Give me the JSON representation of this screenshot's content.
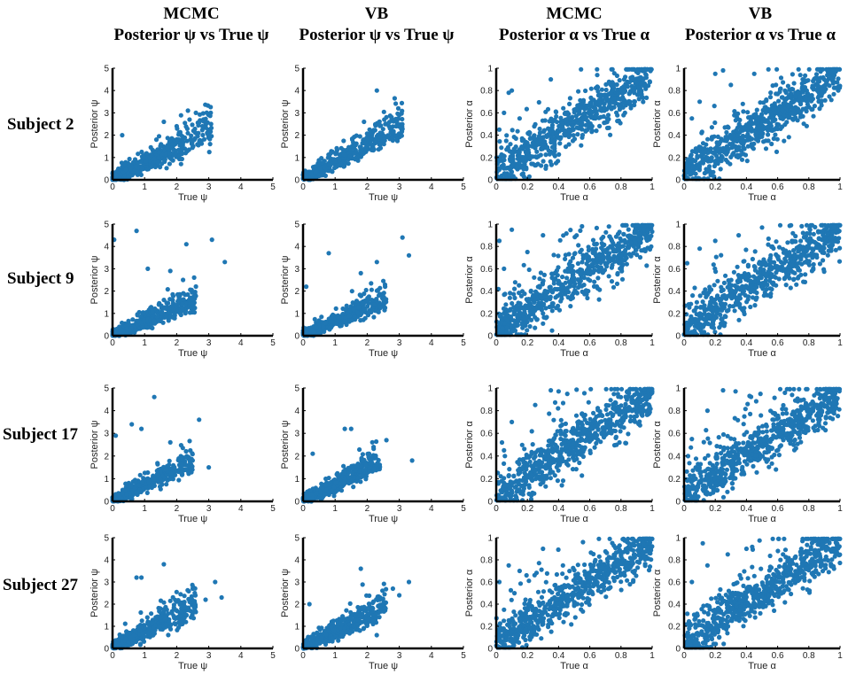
{
  "headers": [
    {
      "line1": "MCMC",
      "line2": "Posterior ψ vs True ψ"
    },
    {
      "line1": "VB",
      "line2": "Posterior ψ vs True ψ"
    },
    {
      "line1": "MCMC",
      "line2": "Posterior α  vs True α"
    },
    {
      "line1": "VB",
      "line2": "Posterior α  vs True α"
    }
  ],
  "rows": [
    "Subject 2",
    "Subject 9",
    "Subject 17",
    "Subject 27"
  ],
  "colors": {
    "marker": "#1f77b4",
    "axis": "#000000"
  },
  "chart_data": [
    {
      "type": "scatter",
      "subject": "Subject 2",
      "method": "MCMC",
      "xlabel": "True ψ",
      "ylabel": "Posterior ψ",
      "xlim": [
        0,
        5
      ],
      "ylim": [
        0,
        5
      ],
      "xticks": [
        0,
        1,
        2,
        3,
        4,
        5
      ],
      "yticks": [
        0,
        1,
        2,
        3,
        4,
        5
      ],
      "grid": false,
      "trend": {
        "kind": "psi",
        "slope": 0.72,
        "spread": 0.28,
        "xmax": 3.1,
        "count": 420,
        "seed": 11
      },
      "points": [
        [
          2.35,
          3.1
        ],
        [
          2.6,
          3.0
        ],
        [
          2.4,
          2.7
        ],
        [
          2.8,
          2.4
        ],
        [
          3.0,
          2.0
        ],
        [
          0.3,
          2.0
        ],
        [
          1.6,
          2.6
        ],
        [
          2.0,
          2.4
        ]
      ]
    },
    {
      "type": "scatter",
      "subject": "Subject 2",
      "method": "VB",
      "xlabel": "True ψ",
      "ylabel": "Posterior ψ",
      "xlim": [
        0,
        5
      ],
      "ylim": [
        0,
        5
      ],
      "xticks": [
        0,
        1,
        2,
        3,
        4,
        5
      ],
      "yticks": [
        0,
        1,
        2,
        3,
        4,
        5
      ],
      "grid": false,
      "trend": {
        "kind": "psi",
        "slope": 0.78,
        "spread": 0.25,
        "xmax": 3.1,
        "count": 420,
        "seed": 12
      },
      "points": [
        [
          2.3,
          4.0
        ],
        [
          3.0,
          2.9
        ],
        [
          2.6,
          2.8
        ],
        [
          2.9,
          2.4
        ],
        [
          2.2,
          2.2
        ],
        [
          1.9,
          2.6
        ]
      ]
    },
    {
      "type": "scatter",
      "subject": "Subject 2",
      "method": "MCMC",
      "xlabel": "True α",
      "ylabel": "Posterior α",
      "xlim": [
        0,
        1
      ],
      "ylim": [
        0,
        1
      ],
      "xticks": [
        0,
        0.2,
        0.4,
        0.6,
        0.8,
        1
      ],
      "yticks": [
        0,
        0.2,
        0.4,
        0.6,
        0.8,
        1
      ],
      "grid": false,
      "trend": {
        "kind": "alpha",
        "slope": 0.9,
        "spread": 0.1,
        "count": 700,
        "seed": 13
      },
      "points": [
        [
          0.08,
          0.78
        ],
        [
          0.1,
          0.8
        ],
        [
          0.05,
          0.6
        ],
        [
          0.35,
          0.9
        ],
        [
          0.15,
          0.55
        ],
        [
          0.02,
          0.45
        ]
      ]
    },
    {
      "type": "scatter",
      "subject": "Subject 2",
      "method": "VB",
      "xlabel": "True α",
      "ylabel": "Posterior α",
      "xlim": [
        0,
        1
      ],
      "ylim": [
        0,
        1
      ],
      "xticks": [
        0,
        0.2,
        0.4,
        0.6,
        0.8,
        1
      ],
      "yticks": [
        0,
        0.2,
        0.4,
        0.6,
        0.8,
        1
      ],
      "grid": false,
      "trend": {
        "kind": "alpha",
        "slope": 0.9,
        "spread": 0.1,
        "count": 700,
        "seed": 14
      },
      "points": [
        [
          0.2,
          0.95
        ],
        [
          0.25,
          0.98
        ],
        [
          0.3,
          0.85
        ],
        [
          0.1,
          0.7
        ],
        [
          0.05,
          0.55
        ],
        [
          0.45,
          0.95
        ]
      ]
    },
    {
      "type": "scatter",
      "subject": "Subject 9",
      "method": "MCMC",
      "xlabel": "True ψ",
      "ylabel": "Posterior ψ",
      "xlim": [
        0,
        5
      ],
      "ylim": [
        0,
        5
      ],
      "xticks": [
        0,
        1,
        2,
        3,
        4,
        5
      ],
      "yticks": [
        0,
        1,
        2,
        3,
        4,
        5
      ],
      "grid": false,
      "trend": {
        "kind": "psi",
        "slope": 0.6,
        "spread": 0.22,
        "xmax": 2.6,
        "count": 460,
        "seed": 21
      },
      "points": [
        [
          0.75,
          4.7
        ],
        [
          3.1,
          4.3
        ],
        [
          2.3,
          4.1
        ],
        [
          3.5,
          3.3
        ],
        [
          0.05,
          4.3
        ],
        [
          1.8,
          2.9
        ],
        [
          2.2,
          2.5
        ],
        [
          1.1,
          3.0
        ]
      ]
    },
    {
      "type": "scatter",
      "subject": "Subject 9",
      "method": "VB",
      "xlabel": "True ψ",
      "ylabel": "Posterior ψ",
      "xlim": [
        0,
        5
      ],
      "ylim": [
        0,
        5
      ],
      "xticks": [
        0,
        1,
        2,
        3,
        4,
        5
      ],
      "yticks": [
        0,
        1,
        2,
        3,
        4,
        5
      ],
      "grid": false,
      "trend": {
        "kind": "psi",
        "slope": 0.62,
        "spread": 0.22,
        "xmax": 2.6,
        "count": 460,
        "seed": 22
      },
      "points": [
        [
          3.1,
          4.4
        ],
        [
          3.3,
          3.6
        ],
        [
          0.8,
          3.7
        ],
        [
          2.3,
          3.3
        ],
        [
          1.8,
          2.8
        ],
        [
          0.1,
          2.2
        ]
      ]
    },
    {
      "type": "scatter",
      "subject": "Subject 9",
      "method": "MCMC",
      "xlabel": "True α",
      "ylabel": "Posterior α",
      "xlim": [
        0,
        1
      ],
      "ylim": [
        0,
        1
      ],
      "xticks": [
        0,
        0.2,
        0.4,
        0.6,
        0.8,
        1
      ],
      "yticks": [
        0,
        0.2,
        0.4,
        0.6,
        0.8,
        1
      ],
      "grid": false,
      "trend": {
        "kind": "alpha",
        "slope": 0.9,
        "spread": 0.1,
        "count": 700,
        "seed": 23
      },
      "points": [
        [
          0.1,
          0.95
        ],
        [
          0.02,
          0.85
        ],
        [
          0.2,
          0.75
        ],
        [
          0.3,
          0.9
        ],
        [
          0.55,
          0.98
        ],
        [
          0.05,
          0.6
        ]
      ]
    },
    {
      "type": "scatter",
      "subject": "Subject 9",
      "method": "VB",
      "xlabel": "True α",
      "ylabel": "Posterior α",
      "xlim": [
        0,
        1
      ],
      "ylim": [
        0,
        1
      ],
      "xticks": [
        0,
        0.2,
        0.4,
        0.6,
        0.8,
        1
      ],
      "yticks": [
        0,
        0.2,
        0.4,
        0.6,
        0.8,
        1
      ],
      "grid": false,
      "trend": {
        "kind": "alpha",
        "slope": 0.9,
        "spread": 0.1,
        "count": 700,
        "seed": 24
      },
      "points": [
        [
          0.2,
          0.85
        ],
        [
          0.1,
          0.78
        ],
        [
          0.02,
          0.65
        ],
        [
          0.35,
          0.9
        ],
        [
          0.5,
          0.97
        ]
      ]
    },
    {
      "type": "scatter",
      "subject": "Subject 17",
      "method": "MCMC",
      "xlabel": "True ψ",
      "ylabel": "Posterior ψ",
      "xlim": [
        0,
        5
      ],
      "ylim": [
        0,
        5
      ],
      "xticks": [
        0,
        1,
        2,
        3,
        4,
        5
      ],
      "yticks": [
        0,
        1,
        2,
        3,
        4,
        5
      ],
      "grid": false,
      "trend": {
        "kind": "psi",
        "slope": 0.7,
        "spread": 0.22,
        "xmax": 2.5,
        "count": 460,
        "seed": 31
      },
      "points": [
        [
          1.3,
          4.6
        ],
        [
          2.7,
          3.6
        ],
        [
          0.1,
          2.9
        ],
        [
          0.9,
          3.2
        ],
        [
          0.6,
          3.4
        ],
        [
          1.8,
          2.6
        ],
        [
          3.0,
          1.5
        ]
      ]
    },
    {
      "type": "scatter",
      "subject": "Subject 17",
      "method": "VB",
      "xlabel": "True ψ",
      "ylabel": "Posterior ψ",
      "xlim": [
        0,
        5
      ],
      "ylim": [
        0,
        5
      ],
      "xticks": [
        0,
        1,
        2,
        3,
        4,
        5
      ],
      "yticks": [
        0,
        1,
        2,
        3,
        4,
        5
      ],
      "grid": false,
      "trend": {
        "kind": "psi",
        "slope": 0.72,
        "spread": 0.22,
        "xmax": 2.4,
        "count": 460,
        "seed": 32
      },
      "points": [
        [
          1.3,
          3.2
        ],
        [
          1.5,
          3.2
        ],
        [
          2.6,
          2.7
        ],
        [
          3.4,
          1.8
        ],
        [
          0.3,
          2.1
        ],
        [
          2.2,
          2.4
        ]
      ]
    },
    {
      "type": "scatter",
      "subject": "Subject 17",
      "method": "MCMC",
      "xlabel": "True α",
      "ylabel": "Posterior α",
      "xlim": [
        0,
        1
      ],
      "ylim": [
        0,
        1
      ],
      "xticks": [
        0,
        0.2,
        0.4,
        0.6,
        0.8,
        1
      ],
      "yticks": [
        0,
        0.2,
        0.4,
        0.6,
        0.8,
        1
      ],
      "grid": false,
      "trend": {
        "kind": "alpha",
        "slope": 0.9,
        "spread": 0.1,
        "count": 700,
        "seed": 33
      },
      "points": [
        [
          0.35,
          0.98
        ],
        [
          0.4,
          0.97
        ],
        [
          0.1,
          0.7
        ],
        [
          0.25,
          0.85
        ],
        [
          0.05,
          0.45
        ]
      ]
    },
    {
      "type": "scatter",
      "subject": "Subject 17",
      "method": "VB",
      "xlabel": "True α",
      "ylabel": "Posterior α",
      "xlim": [
        0,
        1
      ],
      "ylim": [
        0,
        1
      ],
      "xticks": [
        0,
        0.2,
        0.4,
        0.6,
        0.8,
        1
      ],
      "yticks": [
        0,
        0.2,
        0.4,
        0.6,
        0.8,
        1
      ],
      "grid": false,
      "trend": {
        "kind": "alpha",
        "slope": 0.9,
        "spread": 0.1,
        "count": 700,
        "seed": 34
      },
      "points": [
        [
          0.25,
          0.98
        ],
        [
          0.33,
          0.97
        ],
        [
          0.15,
          0.8
        ],
        [
          0.05,
          0.55
        ],
        [
          0.42,
          0.93
        ]
      ]
    },
    {
      "type": "scatter",
      "subject": "Subject 27",
      "method": "MCMC",
      "xlabel": "True ψ",
      "ylabel": "Posterior ψ",
      "xlim": [
        0,
        5
      ],
      "ylim": [
        0,
        5
      ],
      "xticks": [
        0,
        1,
        2,
        3,
        4,
        5
      ],
      "yticks": [
        0,
        1,
        2,
        3,
        4,
        5
      ],
      "grid": false,
      "trend": {
        "kind": "psi",
        "slope": 0.75,
        "spread": 0.28,
        "xmax": 2.6,
        "count": 440,
        "seed": 41
      },
      "points": [
        [
          1.6,
          3.8
        ],
        [
          0.75,
          3.2
        ],
        [
          0.9,
          3.2
        ],
        [
          3.2,
          3.0
        ],
        [
          2.5,
          2.7
        ],
        [
          3.4,
          2.3
        ],
        [
          2.9,
          2.2
        ]
      ]
    },
    {
      "type": "scatter",
      "subject": "Subject 27",
      "method": "VB",
      "xlabel": "True ψ",
      "ylabel": "Posterior ψ",
      "xlim": [
        0,
        5
      ],
      "ylim": [
        0,
        5
      ],
      "xticks": [
        0,
        1,
        2,
        3,
        4,
        5
      ],
      "yticks": [
        0,
        1,
        2,
        3,
        4,
        5
      ],
      "grid": false,
      "trend": {
        "kind": "psi",
        "slope": 0.75,
        "spread": 0.25,
        "xmax": 2.6,
        "count": 440,
        "seed": 42
      },
      "points": [
        [
          1.8,
          3.6
        ],
        [
          3.3,
          3.0
        ],
        [
          2.8,
          2.7
        ],
        [
          3.0,
          2.4
        ],
        [
          0.2,
          2.0
        ],
        [
          2.4,
          2.3
        ]
      ]
    },
    {
      "type": "scatter",
      "subject": "Subject 27",
      "method": "MCMC",
      "xlabel": "True α",
      "ylabel": "Posterior α",
      "xlim": [
        0,
        1
      ],
      "ylim": [
        0,
        1
      ],
      "xticks": [
        0,
        0.2,
        0.4,
        0.6,
        0.8,
        1
      ],
      "yticks": [
        0,
        0.2,
        0.4,
        0.6,
        0.8,
        1
      ],
      "grid": false,
      "trend": {
        "kind": "alpha",
        "slope": 0.9,
        "spread": 0.1,
        "count": 700,
        "seed": 43
      },
      "points": [
        [
          0.08,
          0.75
        ],
        [
          0.02,
          0.6
        ],
        [
          0.15,
          0.7
        ],
        [
          0.3,
          0.9
        ],
        [
          0.05,
          0.35
        ]
      ]
    },
    {
      "type": "scatter",
      "subject": "Subject 27",
      "method": "VB",
      "xlabel": "True α",
      "ylabel": "Posterior α",
      "xlim": [
        0,
        1
      ],
      "ylim": [
        0,
        1
      ],
      "xticks": [
        0,
        0.2,
        0.4,
        0.6,
        0.8,
        1
      ],
      "yticks": [
        0,
        0.2,
        0.4,
        0.6,
        0.8,
        1
      ],
      "grid": false,
      "trend": {
        "kind": "alpha",
        "slope": 0.9,
        "spread": 0.1,
        "count": 700,
        "seed": 44
      },
      "points": [
        [
          0.12,
          0.95
        ],
        [
          0.15,
          0.75
        ],
        [
          0.05,
          0.6
        ],
        [
          0.28,
          0.85
        ],
        [
          0.4,
          0.9
        ]
      ]
    }
  ]
}
